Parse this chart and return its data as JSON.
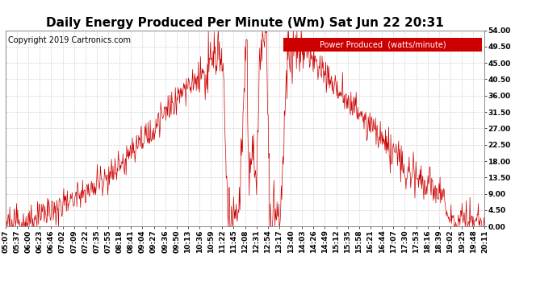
{
  "title": "Daily Energy Produced Per Minute (Wm) Sat Jun 22 20:31",
  "copyright": "Copyright 2019 Cartronics.com",
  "legend_label": "Power Produced  (watts/minute)",
  "legend_bg": "#cc0000",
  "legend_fg": "#ffffff",
  "line_color": "#cc0000",
  "bg_color": "#ffffff",
  "grid_color": "#c8c8c8",
  "yticks": [
    0.0,
    4.5,
    9.0,
    13.5,
    18.0,
    22.5,
    27.0,
    31.5,
    36.0,
    40.5,
    45.0,
    49.5,
    54.0
  ],
  "xtick_labels": [
    "05:07",
    "05:37",
    "06:00",
    "06:23",
    "06:46",
    "07:02",
    "07:09",
    "07:22",
    "07:35",
    "07:55",
    "08:18",
    "08:41",
    "09:04",
    "09:27",
    "09:36",
    "09:50",
    "10:13",
    "10:36",
    "10:59",
    "11:22",
    "11:45",
    "12:08",
    "12:31",
    "12:54",
    "13:17",
    "13:40",
    "14:03",
    "14:26",
    "14:49",
    "15:12",
    "15:35",
    "15:58",
    "16:21",
    "16:44",
    "17:07",
    "17:30",
    "17:53",
    "18:16",
    "18:39",
    "19:02",
    "19:25",
    "19:48",
    "20:11"
  ],
  "ylim": [
    0,
    54
  ],
  "title_fontsize": 11,
  "axis_fontsize": 6.5,
  "copyright_fontsize": 7,
  "legend_fontsize": 7
}
